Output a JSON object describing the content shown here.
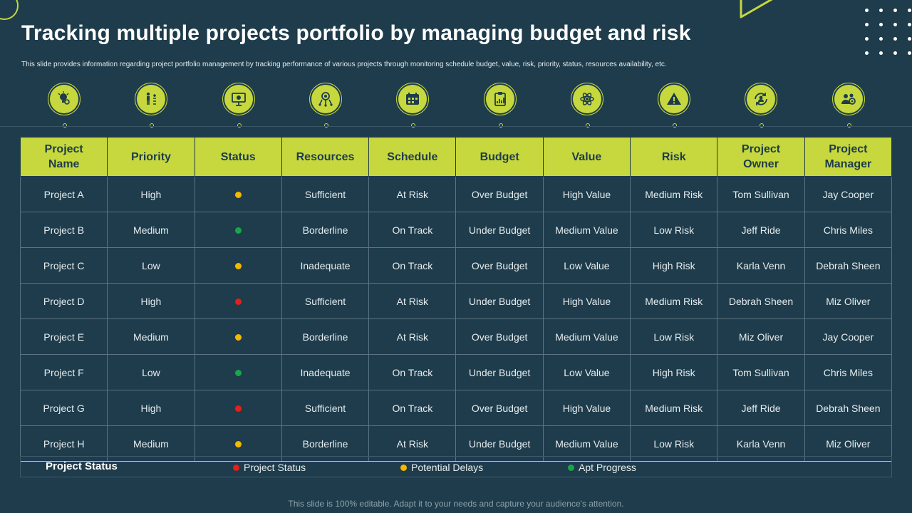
{
  "title": "Tracking multiple projects portfolio by managing budget and risk",
  "subtitle": "This slide provides information regarding project portfolio management  by tracking performance of various projects through monitoring schedule budget, value, risk, priority, status, resources availability, etc.",
  "colors": {
    "background": "#1e3c4b",
    "accent": "#c6d83d",
    "red": "#e3201b",
    "yellow": "#f5b800",
    "green": "#19a64a"
  },
  "icons": [
    "lightbulb-gear-icon",
    "org-chart-icon",
    "presentation-screen-icon",
    "target-network-icon",
    "calendar-icon",
    "clipboard-chart-icon",
    "atom-icon",
    "warning-icon",
    "user-refresh-icon",
    "team-gear-icon"
  ],
  "table": {
    "headers": [
      "Project\nName",
      "Priority",
      "Status",
      "Resources",
      "Schedule",
      "Budget",
      "Value",
      "Risk",
      "Project\nOwner",
      "Project\nManager"
    ],
    "rows": [
      {
        "name": "Project A",
        "priority": "High",
        "status": "yellow",
        "resources": "Sufficient",
        "schedule": "At Risk",
        "budget": "Over Budget",
        "value": "High Value",
        "risk": "Medium Risk",
        "owner": "Tom Sullivan",
        "manager": "Jay Cooper"
      },
      {
        "name": "Project B",
        "priority": "Medium",
        "status": "green",
        "resources": "Borderline",
        "schedule": "On Track",
        "budget": "Under Budget",
        "value": "Medium Value",
        "risk": "Low Risk",
        "owner": "Jeff Ride",
        "manager": "Chris Miles"
      },
      {
        "name": "Project C",
        "priority": "Low",
        "status": "yellow",
        "resources": "Inadequate",
        "schedule": "On Track",
        "budget": "Over Budget",
        "value": "Low Value",
        "risk": "High Risk",
        "owner": "Karla Venn",
        "manager": "Debrah Sheen"
      },
      {
        "name": "Project D",
        "priority": "High",
        "status": "red",
        "resources": "Sufficient",
        "schedule": "At Risk",
        "budget": "Under Budget",
        "value": "High Value",
        "risk": "Medium Risk",
        "owner": "Debrah Sheen",
        "manager": "Miz Oliver"
      },
      {
        "name": "Project E",
        "priority": "Medium",
        "status": "yellow",
        "resources": "Borderline",
        "schedule": "At Risk",
        "budget": "Over Budget",
        "value": "Medium Value",
        "risk": "Low Risk",
        "owner": "Miz Oliver",
        "manager": "Jay Cooper"
      },
      {
        "name": "Project F",
        "priority": "Low",
        "status": "green",
        "resources": "Inadequate",
        "schedule": "On Track",
        "budget": "Under Budget",
        "value": "Low Value",
        "risk": "High Risk",
        "owner": "Tom Sullivan",
        "manager": "Chris Miles"
      },
      {
        "name": "Project G",
        "priority": "High",
        "status": "red",
        "resources": "Sufficient",
        "schedule": "On Track",
        "budget": "Over Budget",
        "value": "High Value",
        "risk": "Medium Risk",
        "owner": "Jeff Ride",
        "manager": "Debrah Sheen"
      },
      {
        "name": "Project H",
        "priority": "Medium",
        "status": "yellow",
        "resources": "Borderline",
        "schedule": "At Risk",
        "budget": "Under Budget",
        "value": "Medium Value",
        "risk": "Low Risk",
        "owner": "Karla Venn",
        "manager": "Miz Oliver"
      }
    ]
  },
  "legend": {
    "title": "Project Status",
    "items": [
      {
        "label": "Project Status",
        "color": "red"
      },
      {
        "label": "Potential Delays",
        "color": "yellow"
      },
      {
        "label": "Apt Progress",
        "color": "green"
      }
    ]
  },
  "footer": "This slide is 100% editable. Adapt it to your needs and capture your audience's attention."
}
